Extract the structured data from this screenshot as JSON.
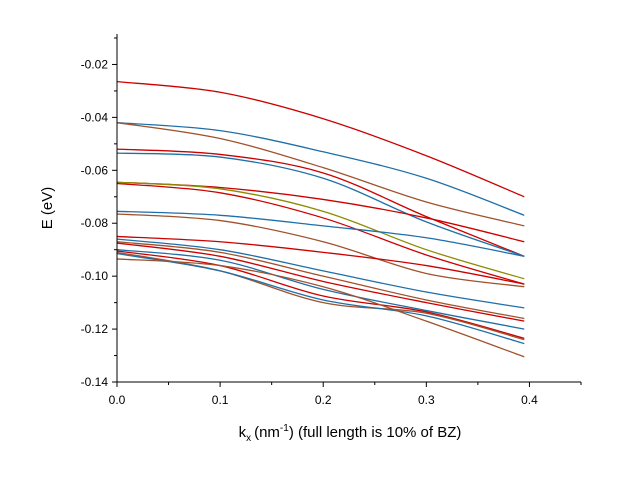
{
  "chart_data": {
    "type": "line",
    "title": "",
    "xlabel_main": "k",
    "xlabel_sub": "x",
    "xlabel_unit_open": "(nm",
    "xlabel_sup": "-1",
    "xlabel_rest": ") (full length is 10% of BZ)",
    "ylabel": "E (eV)",
    "xlim": [
      0.0,
      0.45
    ],
    "ylim": [
      -0.14,
      -0.01
    ],
    "x_ticks": [
      "0.0",
      "0.1",
      "0.2",
      "0.3",
      "0.4"
    ],
    "x_tick_values": [
      0.0,
      0.1,
      0.2,
      0.3,
      0.4
    ],
    "y_ticks": [
      "-0.02",
      "-0.04",
      "-0.06",
      "-0.08",
      "-0.10",
      "-0.12",
      "-0.14"
    ],
    "y_tick_values": [
      -0.02,
      -0.04,
      -0.06,
      -0.08,
      -0.1,
      -0.12,
      -0.14
    ],
    "grid": false,
    "legend": "none",
    "series": [
      {
        "color": "#cc0000",
        "x": [
          0.0,
          0.1,
          0.2,
          0.3,
          0.395
        ],
        "y": [
          -0.0265,
          -0.0305,
          -0.0405,
          -0.0545,
          -0.07
        ]
      },
      {
        "color": "#1f6fa8",
        "x": [
          0.0,
          0.1,
          0.2,
          0.3,
          0.395
        ],
        "y": [
          -0.042,
          -0.045,
          -0.053,
          -0.063,
          -0.077
        ]
      },
      {
        "color": "#a0522d",
        "x": [
          0.0,
          0.1,
          0.2,
          0.3,
          0.395
        ],
        "y": [
          -0.042,
          -0.048,
          -0.059,
          -0.072,
          -0.081
        ]
      },
      {
        "color": "#cc0000",
        "x": [
          0.0,
          0.1,
          0.2,
          0.3,
          0.395
        ],
        "y": [
          -0.052,
          -0.054,
          -0.061,
          -0.0775,
          -0.0925
        ]
      },
      {
        "color": "#1f6fa8",
        "x": [
          0.0,
          0.1,
          0.2,
          0.3,
          0.395
        ],
        "y": [
          -0.0535,
          -0.055,
          -0.063,
          -0.0795,
          -0.0925
        ]
      },
      {
        "color": "#cc0000",
        "x": [
          0.0,
          0.1,
          0.2,
          0.3,
          0.395
        ],
        "y": [
          -0.0645,
          -0.0665,
          -0.071,
          -0.078,
          -0.087
        ]
      },
      {
        "color": "#8b8b00",
        "x": [
          0.0,
          0.1,
          0.2,
          0.3,
          0.395
        ],
        "y": [
          -0.0645,
          -0.067,
          -0.0755,
          -0.09,
          -0.101
        ]
      },
      {
        "color": "#cc0000",
        "x": [
          0.0,
          0.1,
          0.2,
          0.3,
          0.395
        ],
        "y": [
          -0.065,
          -0.0685,
          -0.078,
          -0.092,
          -0.103
        ]
      },
      {
        "color": "#1f6fa8",
        "x": [
          0.0,
          0.1,
          0.2,
          0.3,
          0.395
        ],
        "y": [
          -0.0755,
          -0.077,
          -0.081,
          -0.0855,
          -0.0925
        ]
      },
      {
        "color": "#a0522d",
        "x": [
          0.0,
          0.1,
          0.2,
          0.3,
          0.395
        ],
        "y": [
          -0.0765,
          -0.079,
          -0.087,
          -0.099,
          -0.104
        ]
      },
      {
        "color": "#cc0000",
        "x": [
          0.0,
          0.1,
          0.2,
          0.3,
          0.395
        ],
        "y": [
          -0.085,
          -0.087,
          -0.091,
          -0.096,
          -0.103
        ]
      },
      {
        "color": "#1f6fa8",
        "x": [
          0.0,
          0.1,
          0.2,
          0.3,
          0.395
        ],
        "y": [
          -0.086,
          -0.09,
          -0.098,
          -0.106,
          -0.112
        ]
      },
      {
        "color": "#a0522d",
        "x": [
          0.0,
          0.1,
          0.2,
          0.3,
          0.395
        ],
        "y": [
          -0.087,
          -0.091,
          -0.1,
          -0.109,
          -0.116
        ]
      },
      {
        "color": "#cc0000",
        "x": [
          0.0,
          0.1,
          0.2,
          0.3,
          0.395
        ],
        "y": [
          -0.0875,
          -0.0925,
          -0.102,
          -0.11,
          -0.117
        ]
      },
      {
        "color": "#1f6fa8",
        "x": [
          0.0,
          0.1,
          0.2,
          0.3,
          0.395
        ],
        "y": [
          -0.09,
          -0.094,
          -0.105,
          -0.113,
          -0.12
        ]
      },
      {
        "color": "#cc0000",
        "x": [
          0.0,
          0.1,
          0.2,
          0.3,
          0.395
        ],
        "y": [
          -0.0905,
          -0.096,
          -0.1075,
          -0.1135,
          -0.1235
        ]
      },
      {
        "color": "#a0522d",
        "x": [
          0.0,
          0.1,
          0.2,
          0.3,
          0.395
        ],
        "y": [
          -0.091,
          -0.098,
          -0.11,
          -0.114,
          -0.124
        ]
      },
      {
        "color": "#1f6fa8",
        "x": [
          0.0,
          0.1,
          0.2,
          0.3,
          0.395
        ],
        "y": [
          -0.0915,
          -0.098,
          -0.109,
          -0.115,
          -0.1255
        ]
      },
      {
        "color": "#a0522d",
        "x": [
          0.0,
          0.1,
          0.2,
          0.3,
          0.395
        ],
        "y": [
          -0.0935,
          -0.096,
          -0.104,
          -0.117,
          -0.1305
        ]
      }
    ]
  }
}
